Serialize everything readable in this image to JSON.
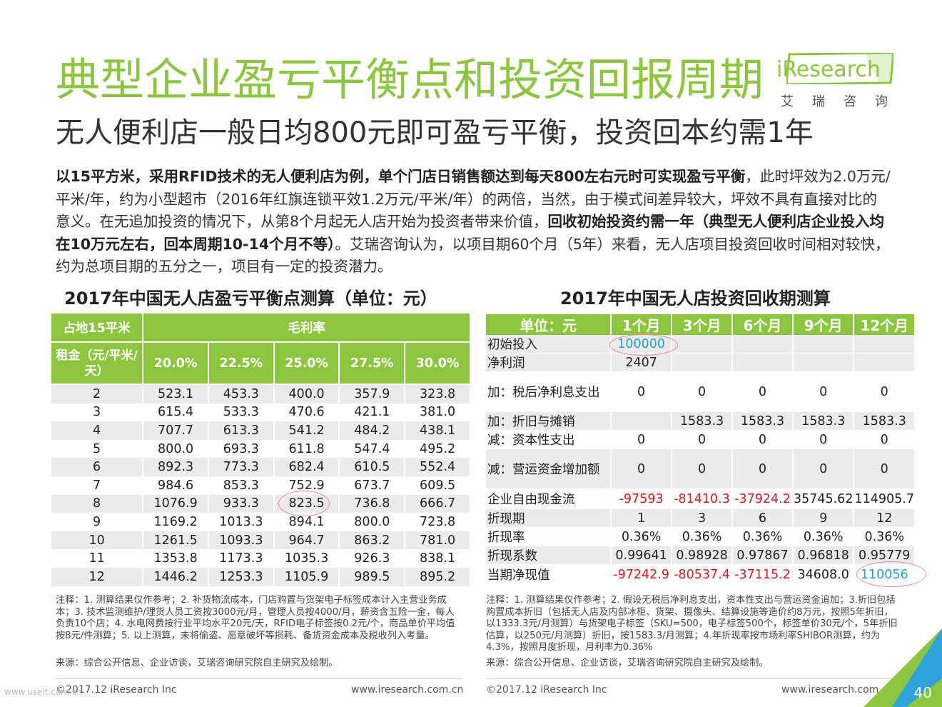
{
  "title": "典型企业盈亏平衡点和投资回报周期",
  "subtitle": "无人便利店一般日均800元即可盈亏平衡，投资回本约需1年",
  "logo": {
    "text": "iResearch",
    "cn": "艾瑞咨询"
  },
  "paragraph": {
    "p1_bold": "以15平方米，采用RFID技术的无人便利店为例，单个门店日销售额达到每天800左右元时可实现盈亏平衡",
    "p2": "，此时坪效为2.0万元/平米/年，约为小型超市（2016年红旗连锁平效1.2万元/平米/年）的两倍，当然，由于模式间差异较大，坪效不具有直接对比的意义。在无追加投资的情况下，从第8个月起无人店开始为投资者带来价值，",
    "p3_bold": "回收初始投资约需一年（典型无人便利店企业投入均在10万元左右，回本周期10-14个月不等）",
    "p4": "。艾瑞咨询认为，以项目期60个月（5年）来看，无人店项目投资回收时间相对较快，约为总项目期的五分之一，项目有一定的投资潜力。"
  },
  "left_table": {
    "title": "2017年中国无人店盈亏平衡点测算（单位：元）",
    "corner_label": "占地15平米",
    "margin_header": "毛利率",
    "rent_header": "租金（元/平米/天）",
    "columns": [
      "20.0%",
      "22.5%",
      "25.0%",
      "27.5%",
      "30.0%"
    ],
    "rows": [
      {
        "rent": "2",
        "values": [
          "523.1",
          "453.3",
          "400.0",
          "357.9",
          "323.8"
        ]
      },
      {
        "rent": "3",
        "values": [
          "615.4",
          "533.3",
          "470.6",
          "421.1",
          "381.0"
        ]
      },
      {
        "rent": "4",
        "values": [
          "707.7",
          "613.3",
          "541.2",
          "484.2",
          "438.1"
        ]
      },
      {
        "rent": "5",
        "values": [
          "800.0",
          "693.3",
          "611.8",
          "547.4",
          "495.2"
        ]
      },
      {
        "rent": "6",
        "values": [
          "892.3",
          "773.3",
          "682.4",
          "610.5",
          "552.4"
        ]
      },
      {
        "rent": "7",
        "values": [
          "984.6",
          "853.3",
          "752.9",
          "673.7",
          "609.5"
        ]
      },
      {
        "rent": "8",
        "values": [
          "1076.9",
          "933.3",
          "823.5",
          "736.8",
          "666.7"
        ]
      },
      {
        "rent": "9",
        "values": [
          "1169.2",
          "1013.3",
          "894.1",
          "800.0",
          "723.8"
        ]
      },
      {
        "rent": "10",
        "values": [
          "1261.5",
          "1093.3",
          "964.7",
          "863.2",
          "781.0"
        ]
      },
      {
        "rent": "11",
        "values": [
          "1353.8",
          "1173.3",
          "1035.3",
          "926.3",
          "838.1"
        ]
      },
      {
        "rent": "12",
        "values": [
          "1446.2",
          "1253.3",
          "1105.9",
          "989.5",
          "895.2"
        ]
      }
    ],
    "note": "注释：1. 测算结果仅作参考；2. 补货物流成本，门店购置与货架电子标签成本计入主营业务成本；3. 技术监测维护/理货人员工资按3000元/月，管理人员按4000/月，薪资含五险一金，每人负责10个店；4. 水电网费按行业平均水平20元/天，RFID电子标签按0.2元/个，商品单价平均值按8元/件测算；5. 以上测算，未将偷盗、恶意破坏等损耗、备货资金成本及税收列入考量。",
    "source": "来源：综合公开信息、企业访谈，艾瑞咨询研究院自主研究及绘制。"
  },
  "right_table": {
    "title": "2017年中国无人店投资回收期测算",
    "unit_header": "单位：元",
    "columns": [
      "1个月",
      "3个月",
      "6个月",
      "9个月",
      "12个月"
    ],
    "rows": [
      {
        "label": "初始投入",
        "values": [
          "100000",
          "",
          "",
          "",
          ""
        ]
      },
      {
        "label": "净利润",
        "values": [
          "2407",
          "",
          "",
          "",
          ""
        ]
      },
      {
        "label": "加：税后净利息支出",
        "values": [
          "0",
          "0",
          "0",
          "0",
          "0"
        ]
      },
      {
        "label": "加：折旧与摊销",
        "values": [
          "",
          "1583.3",
          "1583.3",
          "1583.3",
          "1583.3"
        ]
      },
      {
        "label": "减：资本性支出",
        "values": [
          "0",
          "0",
          "0",
          "0",
          "0"
        ]
      },
      {
        "label": "减：营运资金增加额",
        "values": [
          "0",
          "0",
          "0",
          "0",
          "0"
        ]
      },
      {
        "label": "企业自由现金流",
        "values": [
          "-97593",
          "-81410.3",
          "-37924.2",
          "35745.62",
          "114905.7"
        ]
      },
      {
        "label": "折现期",
        "values": [
          "1",
          "3",
          "6",
          "9",
          "12"
        ]
      },
      {
        "label": "折现率",
        "values": [
          "0.36%",
          "0.36%",
          "0.36%",
          "0.36%",
          "0.36%"
        ]
      },
      {
        "label": "折现系数",
        "values": [
          "0.99641",
          "0.98928",
          "0.97867",
          "0.96818",
          "0.95779"
        ]
      },
      {
        "label": "当期净现值",
        "values": [
          "-97242.9",
          "-80537.4",
          "-37115.2",
          "34608.0",
          "110056"
        ]
      }
    ],
    "note": "注释：1. 测算结果仅作参考；2. 假设无税后净利息支出，资本性支出与营运资金追加；3.折旧包括购置成本折旧（包括无人店及内部冰柜、货架、摄像头、结算设施等造价约8万元，按照5年折旧，以1333.3元/月测算）与货架电子标签（SKU=500，电子标签500个，标签单价30元/个，5年折旧估算，以250元/月测算）折旧，按1583.3/月测算；4.年折现率按市场利率SHIBOR测算，约为4.3%，按照月度折现，月利率为0.36%",
    "source": "来源：综合公开信息、企业访谈，艾瑞咨询研究院自主研究及绘制。"
  },
  "footer": {
    "left_copyright": "©2017.12 iResearch Inc",
    "left_url": "www.iresearch.com.cn",
    "right_copyright": "©2017.12 iResearch Inc",
    "right_url": "www.iresearch.com.cn",
    "watermark": "www.useit.com.cn",
    "page_number": "40"
  },
  "colors": {
    "accent": "#8cc63f",
    "negative": "#e0161b",
    "highlight_blue": "#1fa0d8",
    "circle": "#e58a9b"
  }
}
